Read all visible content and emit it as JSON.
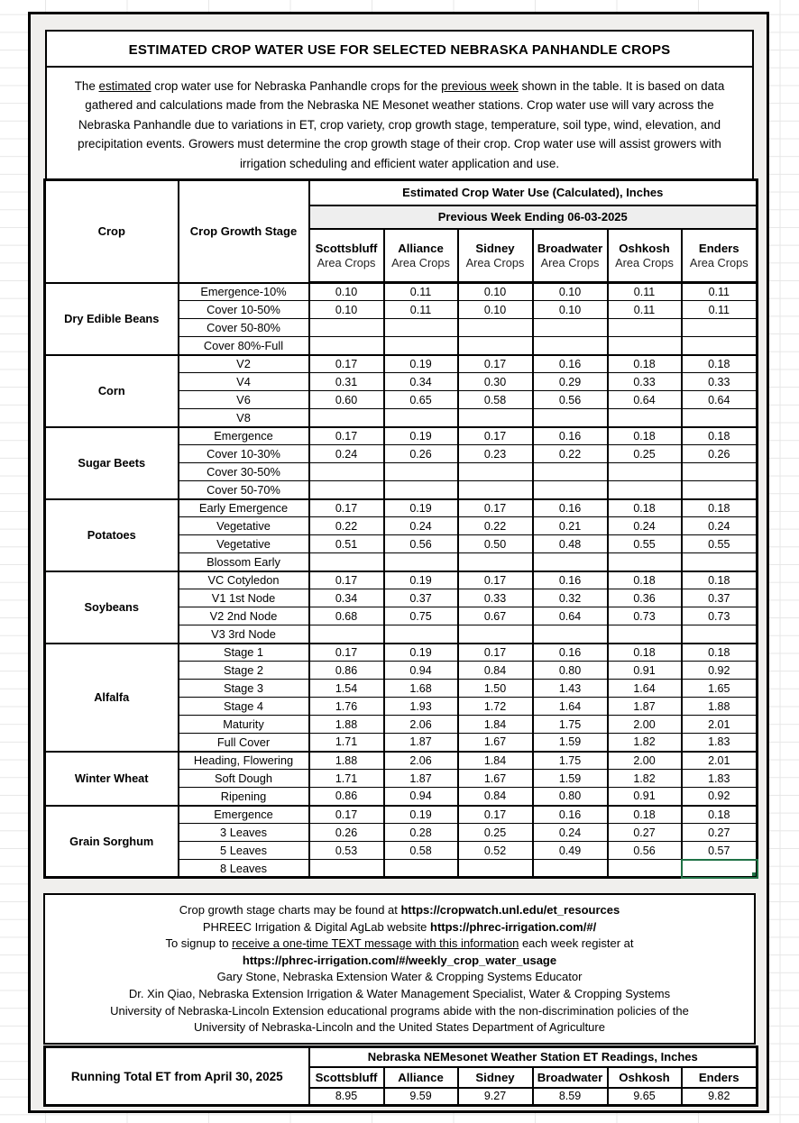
{
  "title_box": {
    "title": "ESTIMATED CROP WATER USE FOR SELECTED NEBRASKA PANHANDLE CROPS",
    "paragraph_segments": [
      {
        "t": "The "
      },
      {
        "t": "estimated",
        "u": true
      },
      {
        "t": " crop water use for Nebraska Panhandle crops for the "
      },
      {
        "t": "previous week",
        "u": true
      },
      {
        "t": " shown in the table. It is based on data gathered and calculations made from the Nebraska NE Mesonet weather stations. Crop water use will vary across the Nebraska Panhandle due to variations in ET, crop variety, crop growth stage, temperature, soil type, wind, elevation, and precipitation events. Growers must determine the crop growth stage of their crop. Crop water use will assist growers with irrigation scheduling and efficient water application and use."
      }
    ]
  },
  "main_table": {
    "corner_headers": {
      "crop": "Crop",
      "stage": "Crop Growth Stage"
    },
    "use_header": "Estimated Crop Water Use (Calculated), Inches",
    "week_header": "Previous Week Ending 06-03-2025",
    "stations": [
      {
        "name": "Scottsbluff",
        "sub": "Area Crops"
      },
      {
        "name": "Alliance",
        "sub": "Area Crops"
      },
      {
        "name": "Sidney",
        "sub": "Area Crops"
      },
      {
        "name": "Broadwater",
        "sub": "Area Crops"
      },
      {
        "name": "Oshkosh",
        "sub": "Area Crops"
      },
      {
        "name": "Enders",
        "sub": "Area Crops"
      }
    ],
    "groups": [
      {
        "crop": "Dry Edible Beans",
        "rows": [
          {
            "stage": "Emergence-10%",
            "values": [
              "0.10",
              "0.11",
              "0.10",
              "0.10",
              "0.11",
              "0.11"
            ]
          },
          {
            "stage": "Cover 10-50%",
            "values": [
              "0.10",
              "0.11",
              "0.10",
              "0.10",
              "0.11",
              "0.11"
            ]
          },
          {
            "stage": "Cover 50-80%",
            "values": [
              "",
              "",
              "",
              "",
              "",
              ""
            ]
          },
          {
            "stage": "Cover 80%-Full",
            "values": [
              "",
              "",
              "",
              "",
              "",
              ""
            ]
          }
        ]
      },
      {
        "crop": "Corn",
        "rows": [
          {
            "stage": "V2",
            "values": [
              "0.17",
              "0.19",
              "0.17",
              "0.16",
              "0.18",
              "0.18"
            ]
          },
          {
            "stage": "V4",
            "values": [
              "0.31",
              "0.34",
              "0.30",
              "0.29",
              "0.33",
              "0.33"
            ]
          },
          {
            "stage": "V6",
            "values": [
              "0.60",
              "0.65",
              "0.58",
              "0.56",
              "0.64",
              "0.64"
            ]
          },
          {
            "stage": "V8",
            "values": [
              "",
              "",
              "",
              "",
              "",
              ""
            ]
          }
        ]
      },
      {
        "crop": "Sugar Beets",
        "rows": [
          {
            "stage": "Emergence",
            "values": [
              "0.17",
              "0.19",
              "0.17",
              "0.16",
              "0.18",
              "0.18"
            ]
          },
          {
            "stage": "Cover 10-30%",
            "values": [
              "0.24",
              "0.26",
              "0.23",
              "0.22",
              "0.25",
              "0.26"
            ]
          },
          {
            "stage": "Cover 30-50%",
            "values": [
              "",
              "",
              "",
              "",
              "",
              ""
            ]
          },
          {
            "stage": "Cover 50-70%",
            "values": [
              "",
              "",
              "",
              "",
              "",
              ""
            ]
          }
        ]
      },
      {
        "crop": "Potatoes",
        "rows": [
          {
            "stage": "Early Emergence",
            "values": [
              "0.17",
              "0.19",
              "0.17",
              "0.16",
              "0.18",
              "0.18"
            ]
          },
          {
            "stage": "Vegetative",
            "values": [
              "0.22",
              "0.24",
              "0.22",
              "0.21",
              "0.24",
              "0.24"
            ]
          },
          {
            "stage": "Vegetative",
            "values": [
              "0.51",
              "0.56",
              "0.50",
              "0.48",
              "0.55",
              "0.55"
            ]
          },
          {
            "stage": "Blossom Early",
            "values": [
              "",
              "",
              "",
              "",
              "",
              ""
            ]
          }
        ]
      },
      {
        "crop": "Soybeans",
        "rows": [
          {
            "stage": "VC Cotyledon",
            "values": [
              "0.17",
              "0.19",
              "0.17",
              "0.16",
              "0.18",
              "0.18"
            ]
          },
          {
            "stage": "V1 1st Node",
            "values": [
              "0.34",
              "0.37",
              "0.33",
              "0.32",
              "0.36",
              "0.37"
            ]
          },
          {
            "stage": "V2 2nd Node",
            "values": [
              "0.68",
              "0.75",
              "0.67",
              "0.64",
              "0.73",
              "0.73"
            ]
          },
          {
            "stage": "V3 3rd Node",
            "values": [
              "",
              "",
              "",
              "",
              "",
              ""
            ]
          }
        ]
      },
      {
        "crop": "Alfalfa",
        "rows": [
          {
            "stage": "Stage 1",
            "values": [
              "0.17",
              "0.19",
              "0.17",
              "0.16",
              "0.18",
              "0.18"
            ]
          },
          {
            "stage": "Stage 2",
            "values": [
              "0.86",
              "0.94",
              "0.84",
              "0.80",
              "0.91",
              "0.92"
            ]
          },
          {
            "stage": "Stage 3",
            "values": [
              "1.54",
              "1.68",
              "1.50",
              "1.43",
              "1.64",
              "1.65"
            ]
          },
          {
            "stage": "Stage 4",
            "values": [
              "1.76",
              "1.93",
              "1.72",
              "1.64",
              "1.87",
              "1.88"
            ]
          },
          {
            "stage": "Maturity",
            "values": [
              "1.88",
              "2.06",
              "1.84",
              "1.75",
              "2.00",
              "2.01"
            ]
          },
          {
            "stage": "Full Cover",
            "values": [
              "1.71",
              "1.87",
              "1.67",
              "1.59",
              "1.82",
              "1.83"
            ]
          }
        ]
      },
      {
        "crop": "Winter Wheat",
        "rows": [
          {
            "stage": "Heading, Flowering",
            "values": [
              "1.88",
              "2.06",
              "1.84",
              "1.75",
              "2.00",
              "2.01"
            ]
          },
          {
            "stage": "Soft Dough",
            "values": [
              "1.71",
              "1.87",
              "1.67",
              "1.59",
              "1.82",
              "1.83"
            ]
          },
          {
            "stage": "Ripening",
            "values": [
              "0.86",
              "0.94",
              "0.84",
              "0.80",
              "0.91",
              "0.92"
            ]
          }
        ]
      },
      {
        "crop": "Grain Sorghum",
        "rows": [
          {
            "stage": "Emergence",
            "values": [
              "0.17",
              "0.19",
              "0.17",
              "0.16",
              "0.18",
              "0.18"
            ]
          },
          {
            "stage": "3 Leaves",
            "values": [
              "0.26",
              "0.28",
              "0.25",
              "0.24",
              "0.27",
              "0.27"
            ]
          },
          {
            "stage": "5 Leaves",
            "values": [
              "0.53",
              "0.58",
              "0.52",
              "0.49",
              "0.56",
              "0.57"
            ]
          },
          {
            "stage": "8 Leaves",
            "values": [
              "",
              "",
              "",
              "",
              "",
              ""
            ]
          }
        ]
      }
    ],
    "selected_cell": {
      "group_index": 7,
      "row_index": 3,
      "col_index": 5
    }
  },
  "footer_box": {
    "lines": [
      [
        {
          "t": "Crop growth stage charts may be found at "
        },
        {
          "t": "https://cropwatch.unl.edu/et_resources",
          "b": true,
          "link": true
        }
      ],
      [
        {
          "t": "PHREEC Irrigation & Digital AgLab website "
        },
        {
          "t": "https://phrec-irrigation.com/#/",
          "b": true,
          "link": true
        }
      ],
      [
        {
          "t": "To signup to "
        },
        {
          "t": "receive a one-time TEXT message with this information",
          "u": true
        },
        {
          "t": " each week register at"
        }
      ],
      [
        {
          "t": "https://phrec-irrigation.com/#/weekly_crop_water_usage",
          "b": true,
          "link": true
        }
      ],
      [
        {
          "t": "Gary Stone, Nebraska Extension Water & Cropping Systems Educator"
        }
      ],
      [
        {
          "t": "Dr. Xin Qiao, Nebraska Extension Irrigation & Water Management Specialist, Water & Cropping Systems"
        }
      ],
      [
        {
          "t": "University of Nebraska-Lincoln Extension educational programs abide with the non-discrimination policies of the"
        }
      ],
      [
        {
          "t": "University of Nebraska-Lincoln and the United States Department of Agriculture"
        }
      ]
    ]
  },
  "running_total_table": {
    "label": "Running Total ET from April 30, 2025",
    "header": "Nebraska NEMesonet  Weather Station ET Readings, Inches",
    "stations": [
      "Scottsbluff",
      "Alliance",
      "Sidney",
      "Broadwater",
      "Oshkosh",
      "Enders"
    ],
    "values": [
      "8.95",
      "9.59",
      "9.27",
      "8.59",
      "9.65",
      "9.82"
    ]
  },
  "colors": {
    "selection_green": "#1F7145",
    "week_band_gray": "#eeeeee",
    "container_gray": "#f0efed",
    "gridline_gray": "#e7e7e7"
  }
}
